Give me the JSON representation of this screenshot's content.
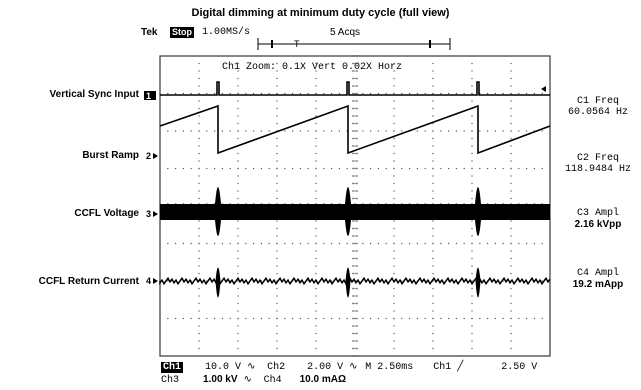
{
  "title": "Digital dimming at minimum duty cycle (full view)",
  "header": {
    "brand": "Tek",
    "run_state": "Stop",
    "sample_rate": "1.00MS/s",
    "acquisitions": "5 Acqs",
    "trigger_marker": "T"
  },
  "zoom": "Ch1 Zoom:     0.1X Vert   0.02X Horz",
  "channels": [
    {
      "label": "Vertical Sync Input",
      "marker": "1"
    },
    {
      "label": "Burst Ramp",
      "marker": "2"
    },
    {
      "label": "CCFL Voltage",
      "marker": "3"
    },
    {
      "label": "CCFL Return Current",
      "marker": "4"
    }
  ],
  "measurements": [
    {
      "name": "C1 Freq",
      "value": "60.0564 Hz"
    },
    {
      "name": "C2 Freq",
      "value": "118.9484 Hz"
    },
    {
      "name": "C3 Ampl",
      "value": "2.16 kVpp"
    },
    {
      "name": "C4 Ampl",
      "value": "19.2 mApp"
    }
  ],
  "footer": {
    "ch1": "Ch1",
    "ch1_scale": "10.0 V",
    "ch2": "Ch2",
    "ch2_scale": "2.00 V",
    "timebase": "M 2.50ms",
    "trig_src": "Ch1",
    "trig_level": "2.50 V",
    "ch3": "Ch3",
    "ch3_scale": "1.00 kV",
    "ch4": "Ch4",
    "ch4_scale": "10.0 mAΩ"
  }
}
